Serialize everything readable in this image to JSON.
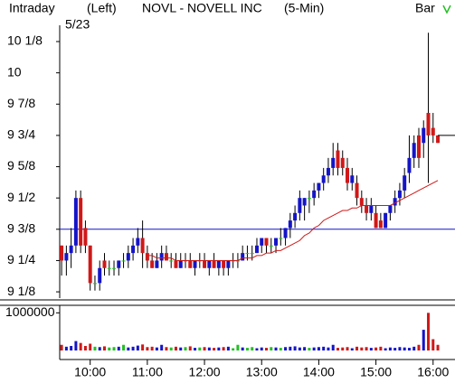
{
  "chart_data": {
    "type": "candlestick",
    "header": {
      "mode": "Intraday",
      "side": "(Left)",
      "title": "NOVL - NOVELL INC",
      "interval": "(5-Min)",
      "style": "Bar"
    },
    "date": "5/23",
    "x": [
      570,
      575,
      580,
      585,
      590,
      595,
      600,
      605,
      610,
      615,
      620,
      625,
      630,
      635,
      640,
      645,
      650,
      655,
      660,
      665,
      670,
      675,
      680,
      685,
      690,
      695,
      700,
      705,
      710,
      715,
      720,
      725,
      730,
      735,
      740,
      745,
      750,
      755,
      760,
      765,
      770,
      775,
      780,
      785,
      790,
      795,
      800,
      805,
      810,
      815,
      820,
      825,
      830,
      835,
      840,
      845,
      850,
      855,
      860,
      865,
      870,
      875,
      880,
      885,
      890,
      895,
      900,
      905,
      910,
      915,
      920,
      925,
      930,
      935,
      940,
      945,
      950,
      955,
      960,
      965
    ],
    "ohlc": [
      [
        9.31,
        9.31,
        9.19,
        9.25
      ],
      [
        9.25,
        9.31,
        9.19,
        9.28
      ],
      [
        9.28,
        9.38,
        9.22,
        9.31
      ],
      [
        9.31,
        9.53,
        9.28,
        9.5
      ],
      [
        9.5,
        9.53,
        9.28,
        9.31
      ],
      [
        9.38,
        9.41,
        9.28,
        9.31
      ],
      [
        9.31,
        9.31,
        9.13,
        9.16
      ],
      [
        9.16,
        9.19,
        9.13,
        9.16
      ],
      [
        9.16,
        9.25,
        9.13,
        9.22
      ],
      [
        9.25,
        9.28,
        9.19,
        9.22
      ],
      [
        9.22,
        9.25,
        9.19,
        9.22
      ],
      [
        9.22,
        9.25,
        9.19,
        9.22
      ],
      [
        9.22,
        9.25,
        9.19,
        9.25
      ],
      [
        9.25,
        9.28,
        9.22,
        9.25
      ],
      [
        9.25,
        9.31,
        9.22,
        9.28
      ],
      [
        9.28,
        9.34,
        9.25,
        9.31
      ],
      [
        9.31,
        9.38,
        9.28,
        9.34
      ],
      [
        9.34,
        9.41,
        9.22,
        9.28
      ],
      [
        9.28,
        9.31,
        9.22,
        9.25
      ],
      [
        9.25,
        9.28,
        9.22,
        9.22
      ],
      [
        9.22,
        9.28,
        9.22,
        9.25
      ],
      [
        9.25,
        9.31,
        9.22,
        9.28
      ],
      [
        9.28,
        9.31,
        9.25,
        9.25
      ],
      [
        9.25,
        9.28,
        9.22,
        9.25
      ],
      [
        9.25,
        9.28,
        9.22,
        9.22
      ],
      [
        9.22,
        9.28,
        9.22,
        9.25
      ],
      [
        9.25,
        9.28,
        9.22,
        9.25
      ],
      [
        9.25,
        9.28,
        9.22,
        9.22
      ],
      [
        9.22,
        9.25,
        9.19,
        9.25
      ],
      [
        9.25,
        9.28,
        9.22,
        9.25
      ],
      [
        9.25,
        9.28,
        9.22,
        9.22
      ],
      [
        9.22,
        9.25,
        9.19,
        9.25
      ],
      [
        9.25,
        9.28,
        9.22,
        9.22
      ],
      [
        9.22,
        9.25,
        9.19,
        9.25
      ],
      [
        9.25,
        9.25,
        9.19,
        9.22
      ],
      [
        9.22,
        9.25,
        9.19,
        9.25
      ],
      [
        9.25,
        9.28,
        9.22,
        9.25
      ],
      [
        9.25,
        9.28,
        9.22,
        9.25
      ],
      [
        9.25,
        9.31,
        9.25,
        9.28
      ],
      [
        9.28,
        9.31,
        9.25,
        9.28
      ],
      [
        9.28,
        9.31,
        9.25,
        9.28
      ],
      [
        9.28,
        9.34,
        9.28,
        9.31
      ],
      [
        9.31,
        9.34,
        9.28,
        9.34
      ],
      [
        9.34,
        9.34,
        9.28,
        9.31
      ],
      [
        9.31,
        9.34,
        9.28,
        9.31
      ],
      [
        9.31,
        9.34,
        9.28,
        9.34
      ],
      [
        9.34,
        9.38,
        9.31,
        9.34
      ],
      [
        9.34,
        9.38,
        9.31,
        9.38
      ],
      [
        9.38,
        9.44,
        9.34,
        9.41
      ],
      [
        9.41,
        9.47,
        9.38,
        9.44
      ],
      [
        9.44,
        9.53,
        9.41,
        9.5
      ],
      [
        9.47,
        9.5,
        9.41,
        9.5
      ],
      [
        9.5,
        9.53,
        9.44,
        9.5
      ],
      [
        9.5,
        9.56,
        9.47,
        9.53
      ],
      [
        9.53,
        9.56,
        9.5,
        9.56
      ],
      [
        9.56,
        9.62,
        9.53,
        9.59
      ],
      [
        9.59,
        9.66,
        9.56,
        9.62
      ],
      [
        9.62,
        9.72,
        9.59,
        9.66
      ],
      [
        9.69,
        9.72,
        9.59,
        9.62
      ],
      [
        9.66,
        9.69,
        9.59,
        9.62
      ],
      [
        9.62,
        9.66,
        9.53,
        9.56
      ],
      [
        9.56,
        9.62,
        9.53,
        9.59
      ],
      [
        9.56,
        9.59,
        9.47,
        9.5
      ],
      [
        9.5,
        9.53,
        9.44,
        9.47
      ],
      [
        9.47,
        9.5,
        9.41,
        9.44
      ],
      [
        9.44,
        9.5,
        9.41,
        9.47
      ],
      [
        9.44,
        9.47,
        9.38,
        9.38
      ],
      [
        9.41,
        9.44,
        9.38,
        9.38
      ],
      [
        9.38,
        9.44,
        9.38,
        9.44
      ],
      [
        9.44,
        9.47,
        9.41,
        9.47
      ],
      [
        9.47,
        9.53,
        9.44,
        9.5
      ],
      [
        9.5,
        9.56,
        9.47,
        9.53
      ],
      [
        9.53,
        9.62,
        9.5,
        9.59
      ],
      [
        9.6,
        9.75,
        9.56,
        9.66
      ],
      [
        9.66,
        9.75,
        9.62,
        9.72
      ],
      [
        9.75,
        9.78,
        9.62,
        9.66
      ],
      [
        9.72,
        9.81,
        9.66,
        9.78
      ],
      [
        9.84,
        10.16,
        9.56,
        9.75
      ],
      [
        9.78,
        9.84,
        9.72,
        9.75
      ],
      [
        9.75,
        9.75,
        9.72,
        9.72
      ]
    ],
    "volume": [
      150000,
      100000,
      120000,
      250000,
      200000,
      120000,
      180000,
      100000,
      90000,
      110000,
      80000,
      90000,
      100000,
      150000,
      80000,
      100000,
      130000,
      160000,
      90000,
      100000,
      80000,
      150000,
      90000,
      80000,
      100000,
      80000,
      90000,
      110000,
      70000,
      80000,
      90000,
      80000,
      70000,
      80000,
      90000,
      100000,
      60000,
      150000,
      80000,
      70000,
      90000,
      60000,
      80000,
      70000,
      90000,
      80000,
      70000,
      90000,
      100000,
      110000,
      80000,
      90000,
      70000,
      80000,
      90000,
      100000,
      80000,
      150000,
      70000,
      80000,
      90000,
      60000,
      100000,
      80000,
      90000,
      70000,
      80000,
      100000,
      60000,
      80000,
      70000,
      90000,
      80000,
      70000,
      100000,
      150000,
      550000,
      1000000,
      300000,
      150000
    ],
    "ma": [
      null,
      null,
      null,
      null,
      null,
      null,
      null,
      null,
      null,
      null,
      null,
      null,
      null,
      null,
      null,
      null,
      null,
      null,
      9.27,
      9.27,
      9.26,
      9.26,
      9.26,
      9.26,
      9.25,
      9.25,
      9.25,
      9.25,
      9.25,
      9.25,
      9.25,
      9.25,
      9.25,
      9.25,
      9.25,
      9.25,
      9.25,
      9.25,
      9.26,
      9.26,
      9.26,
      9.27,
      9.27,
      9.28,
      9.28,
      9.29,
      9.29,
      9.3,
      9.31,
      9.32,
      9.33,
      9.35,
      9.36,
      9.38,
      9.39,
      9.41,
      9.42,
      9.43,
      9.44,
      9.45,
      9.45,
      9.46,
      9.46,
      9.47,
      9.47,
      9.47,
      9.47,
      9.47,
      9.47,
      9.47,
      9.48,
      9.49,
      9.5,
      9.51,
      9.52,
      9.53,
      9.54,
      9.55,
      9.56,
      9.57
    ],
    "reference_line": 9.375,
    "last_price": 9.75,
    "xlim": [
      568,
      983
    ],
    "xticks": [
      {
        "value": 600,
        "label": "10:00"
      },
      {
        "value": 660,
        "label": "11:00"
      },
      {
        "value": 720,
        "label": "12:00"
      },
      {
        "value": 780,
        "label": "13:00"
      },
      {
        "value": 840,
        "label": "14:00"
      },
      {
        "value": 900,
        "label": "15:00"
      },
      {
        "value": 960,
        "label": "16:00"
      }
    ],
    "ylim": [
      9.1,
      10.19
    ],
    "yticks": [
      {
        "value": 9.125,
        "label": "9 1/8"
      },
      {
        "value": 9.25,
        "label": "9 1/4"
      },
      {
        "value": 9.375,
        "label": "9 3/8"
      },
      {
        "value": 9.5,
        "label": "9 1/2"
      },
      {
        "value": 9.625,
        "label": "9 5/8"
      },
      {
        "value": 9.75,
        "label": "9 3/4"
      },
      {
        "value": 9.875,
        "label": "9 7/8"
      },
      {
        "value": 10,
        "label": "10"
      },
      {
        "value": 10.125,
        "label": "10 1/8"
      }
    ],
    "vlim": [
      0,
      1200000
    ],
    "vticks": [
      1000000
    ],
    "colors": {
      "up": "#1414c8",
      "down": "#d01818",
      "flat": "#22c022",
      "ma": "#d01818",
      "reference": "#1414c8",
      "last": "#000000"
    }
  }
}
